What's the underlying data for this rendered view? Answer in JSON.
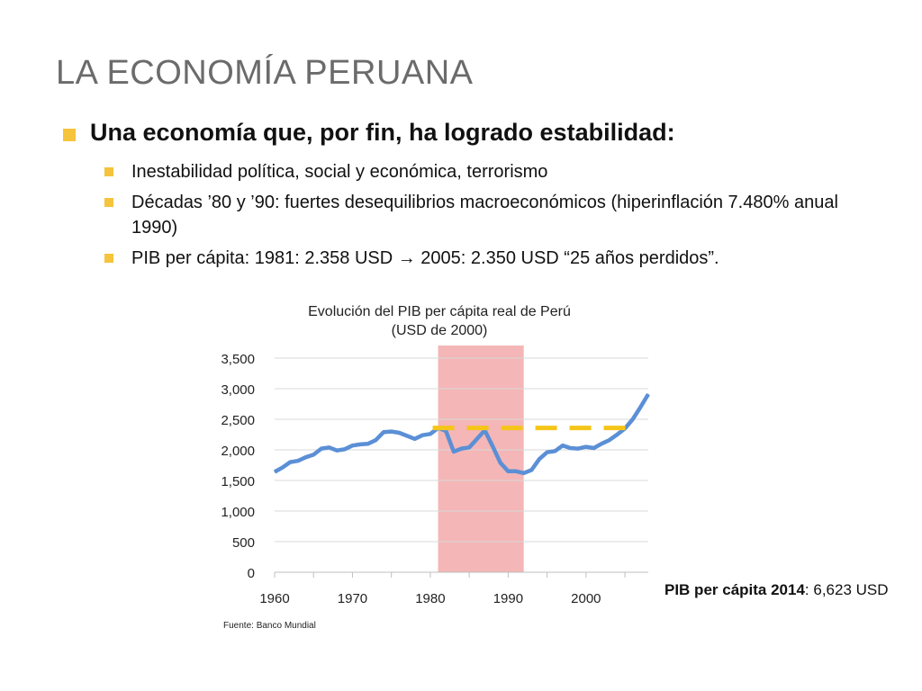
{
  "slide": {
    "title": "LA ECONOMÍA PERUANA",
    "bullet_main": "Una economía que, por fin, ha logrado estabilidad:",
    "sub_bullets": [
      "Inestabilidad política, social y económica, terrorismo",
      "Décadas ’80 y ’90: fuertes desequilibrios macroeconómicos (hiperinflación 7.480% anual 1990)",
      "PIB per cápita: 1981: 2.358 USD → 2005: 2.350 USD “25 años perdidos”."
    ],
    "side_note_bold": "PIB per cápita 2014",
    "side_note_rest": ": 6,623 USD",
    "source": "Fuente: Banco Mundial"
  },
  "colors": {
    "accent": "#f5c43c",
    "line": "#5b8fd6",
    "shade": "#f4b6b6",
    "dash": "#f5c518"
  },
  "chart_data": {
    "type": "line",
    "title": "Evolución del PIB per cápita real de Perú",
    "subtitle": "(USD de 2000)",
    "xlabel": "",
    "ylabel": "",
    "xlim": [
      1960,
      2008
    ],
    "ylim": [
      0,
      3500
    ],
    "x_ticks": [
      1960,
      1970,
      1980,
      1990,
      2000
    ],
    "y_ticks": [
      0,
      500,
      1000,
      1500,
      2000,
      2500,
      3000,
      3500
    ],
    "y_tick_labels": [
      "0",
      "500",
      "1,000",
      "1,500",
      "2,000",
      "2,500",
      "3,000",
      "3,500"
    ],
    "grid": true,
    "highlight_range": [
      1981,
      1992
    ],
    "reference_line": {
      "value": 2358,
      "x_range": [
        1981,
        2005
      ],
      "style": "dashed"
    },
    "series": [
      {
        "x": [
          1960,
          1961,
          1962,
          1963,
          1964,
          1965,
          1966,
          1967,
          1968,
          1969,
          1970,
          1971,
          1972,
          1973,
          1974,
          1975,
          1976,
          1977,
          1978,
          1979,
          1980,
          1981,
          1982,
          1983,
          1984,
          1985,
          1986,
          1987,
          1988,
          1989,
          1990,
          1991,
          1992,
          1993,
          1994,
          1995,
          1996,
          1997,
          1998,
          1999,
          2000,
          2001,
          2002,
          2003,
          2004,
          2005,
          2006,
          2007,
          2008
        ],
        "values": [
          1640,
          1710,
          1800,
          1820,
          1880,
          1920,
          2020,
          2040,
          1990,
          2010,
          2070,
          2090,
          2100,
          2160,
          2290,
          2300,
          2280,
          2230,
          2180,
          2240,
          2260,
          2358,
          2310,
          1970,
          2020,
          2040,
          2180,
          2320,
          2060,
          1790,
          1650,
          1650,
          1620,
          1670,
          1850,
          1960,
          1980,
          2070,
          2030,
          2020,
          2050,
          2030,
          2100,
          2160,
          2250,
          2350,
          2500,
          2700,
          2910
        ]
      }
    ]
  }
}
